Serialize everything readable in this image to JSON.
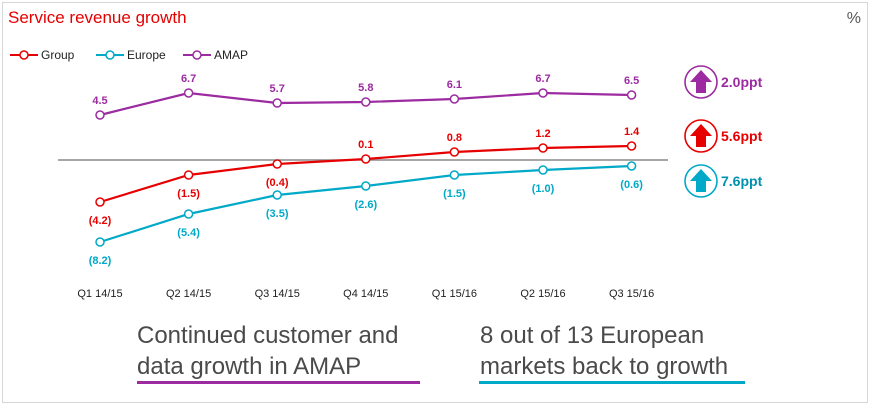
{
  "title": "Service revenue growth",
  "unit_label": "%",
  "chart_data": {
    "type": "line",
    "title": "Service revenue growth",
    "ylabel": "%",
    "categories": [
      "Q1 14/15",
      "Q2 14/15",
      "Q3 14/15",
      "Q4 14/15",
      "Q1 15/16",
      "Q2 15/16",
      "Q3 15/16"
    ],
    "series": [
      {
        "name": "Group",
        "color": "#e60000",
        "values": [
          -4.2,
          -1.5,
          -0.4,
          0.1,
          0.8,
          1.2,
          1.4
        ],
        "labels": [
          "(4.2)",
          "(1.5)",
          "(0.4)",
          "0.1",
          "0.8",
          "1.2",
          "1.4"
        ]
      },
      {
        "name": "Europe",
        "color": "#00a9c7",
        "values": [
          -8.2,
          -5.4,
          -3.5,
          -2.6,
          -1.5,
          -1.0,
          -0.6
        ],
        "labels": [
          "(8.2)",
          "(5.4)",
          "(3.5)",
          "(2.6)",
          "(1.5)",
          "(1.0)",
          "(0.6)"
        ]
      },
      {
        "name": "AMAP",
        "color": "#9c2aa0",
        "values": [
          4.5,
          6.7,
          5.7,
          5.8,
          6.1,
          6.7,
          6.5
        ],
        "labels": [
          "4.5",
          "6.7",
          "5.7",
          "5.8",
          "6.1",
          "6.7",
          "6.5"
        ]
      }
    ],
    "changes": [
      {
        "series": "AMAP",
        "label": "2.0ppt",
        "direction": "up",
        "color": "#9c2aa0",
        "text_color": "#9c2aa0"
      },
      {
        "series": "Group",
        "label": "5.6ppt",
        "direction": "up",
        "color": "#e60000",
        "text_color": "#e60000"
      },
      {
        "series": "Europe",
        "label": "7.6ppt",
        "direction": "up",
        "color": "#00a9c7",
        "text_color": "#0090b0"
      }
    ],
    "grid": false,
    "legend_position": "top-left"
  },
  "captions": {
    "left": {
      "line1": "Continued customer and",
      "line2": "data growth in AMAP",
      "underline_color": "#9c2aa0"
    },
    "right": {
      "line1": "8 out of 13 European",
      "line2": "markets back to growth",
      "underline_color": "#00a9c7"
    }
  }
}
